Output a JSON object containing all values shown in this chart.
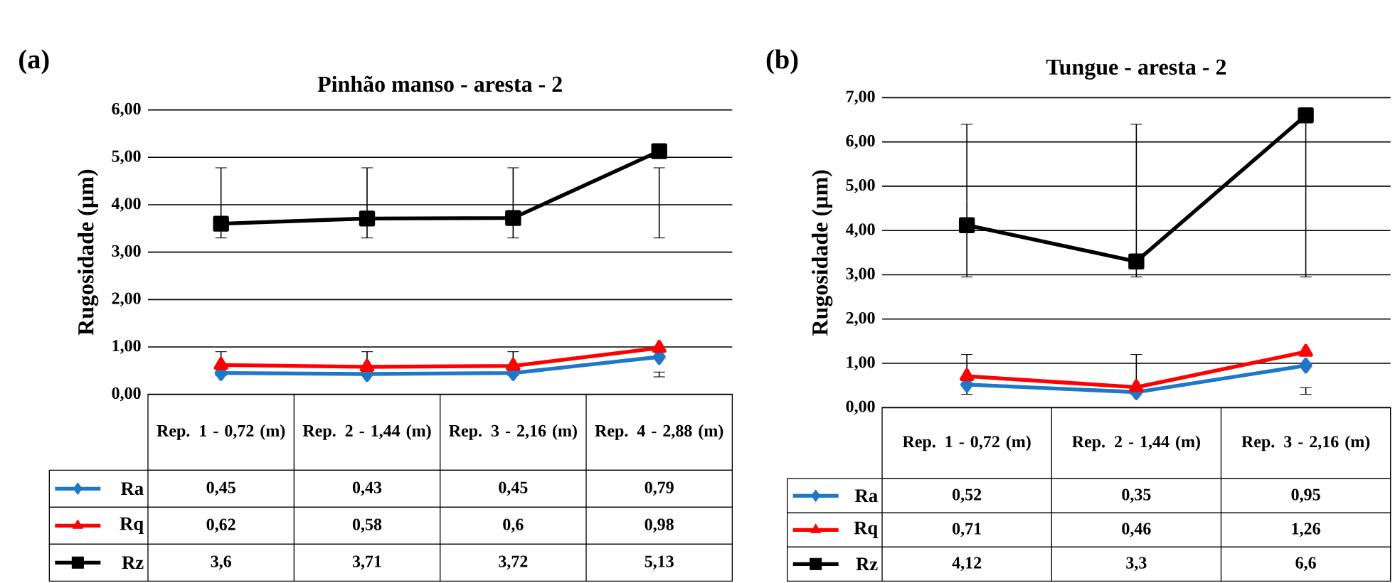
{
  "chart_data": [
    {
      "type": "line",
      "title": "Pinhão manso - aresta - 2",
      "ylabel": "Rugosidade (µm)",
      "annotations": [
        "(a)"
      ],
      "categories": [
        "Rep. 1 - 0,72 (m)",
        "Rep. 2 - 1,44 (m)",
        "Rep. 3 - 2,16 (m)",
        "Rep. 4 - 2,88 (m)"
      ],
      "ylim": [
        0,
        6
      ],
      "yticks": [
        {
          "value": 0,
          "label": "0,00"
        },
        {
          "value": 1,
          "label": "1,00"
        },
        {
          "value": 2,
          "label": "2,00"
        },
        {
          "value": 3,
          "label": "3,00"
        },
        {
          "value": 4,
          "label": "4,00"
        },
        {
          "value": 5,
          "label": "5,00"
        },
        {
          "value": 6,
          "label": "6,00"
        }
      ],
      "grid": "y",
      "legend": "bottom",
      "series": [
        {
          "name": "Ra",
          "color": "#1f77c8",
          "marker": "diamond",
          "values": [
            0.45,
            0.43,
            0.45,
            0.79
          ],
          "value_labels": [
            "0,45",
            "0,43",
            "0,45",
            "0,79"
          ],
          "errors": [
            [
              0.4,
              0.9
            ],
            [
              0.4,
              0.9
            ],
            [
              0.4,
              0.9
            ],
            [
              0.37,
              0.47
            ]
          ]
        },
        {
          "name": "Rq",
          "color": "#ff0000",
          "marker": "triangle",
          "values": [
            0.62,
            0.58,
            0.6,
            0.98
          ],
          "value_labels": [
            "0,62",
            "0,58",
            "0,6",
            "0,98"
          ]
        },
        {
          "name": "Rz",
          "color": "#000000",
          "marker": "square",
          "values": [
            3.6,
            3.71,
            3.72,
            5.13
          ],
          "value_labels": [
            "3,6",
            "3,71",
            "3,72",
            "5,13"
          ],
          "errors": [
            [
              3.3,
              4.78
            ],
            [
              3.3,
              4.78
            ],
            [
              3.3,
              4.78
            ],
            [
              3.3,
              4.78
            ]
          ]
        }
      ]
    },
    {
      "type": "line",
      "title": "Tungue - aresta - 2",
      "ylabel": "Rugosidade (µm)",
      "annotations": [
        "(b)"
      ],
      "categories": [
        "Rep. 1 - 0,72 (m)",
        "Rep. 2 - 1,44 (m)",
        "Rep. 3 - 2,16 (m)"
      ],
      "ylim": [
        0,
        7
      ],
      "yticks": [
        {
          "value": 0,
          "label": "0,00"
        },
        {
          "value": 1,
          "label": "1,00"
        },
        {
          "value": 2,
          "label": "2,00"
        },
        {
          "value": 3,
          "label": "3,00"
        },
        {
          "value": 4,
          "label": "4,00"
        },
        {
          "value": 5,
          "label": "5,00"
        },
        {
          "value": 6,
          "label": "6,00"
        },
        {
          "value": 7,
          "label": "7,00"
        }
      ],
      "grid": "y",
      "legend": "bottom",
      "series": [
        {
          "name": "Ra",
          "color": "#1f77c8",
          "marker": "diamond",
          "values": [
            0.52,
            0.35,
            0.95
          ],
          "value_labels": [
            "0,52",
            "0,35",
            "0,95"
          ],
          "errors": [
            [
              0.3,
              1.2
            ],
            [
              0.3,
              1.2
            ],
            [
              0.3,
              0.45
            ]
          ]
        },
        {
          "name": "Rq",
          "color": "#ff0000",
          "marker": "triangle",
          "values": [
            0.71,
            0.46,
            1.26
          ],
          "value_labels": [
            "0,71",
            "0,46",
            "1,26"
          ]
        },
        {
          "name": "Rz",
          "color": "#000000",
          "marker": "square",
          "values": [
            4.12,
            3.3,
            6.6
          ],
          "value_labels": [
            "4,12",
            "3,3",
            "6,6"
          ],
          "errors": [
            [
              2.95,
              6.4
            ],
            [
              2.95,
              6.4
            ],
            [
              2.95,
              6.6
            ]
          ]
        }
      ]
    }
  ]
}
